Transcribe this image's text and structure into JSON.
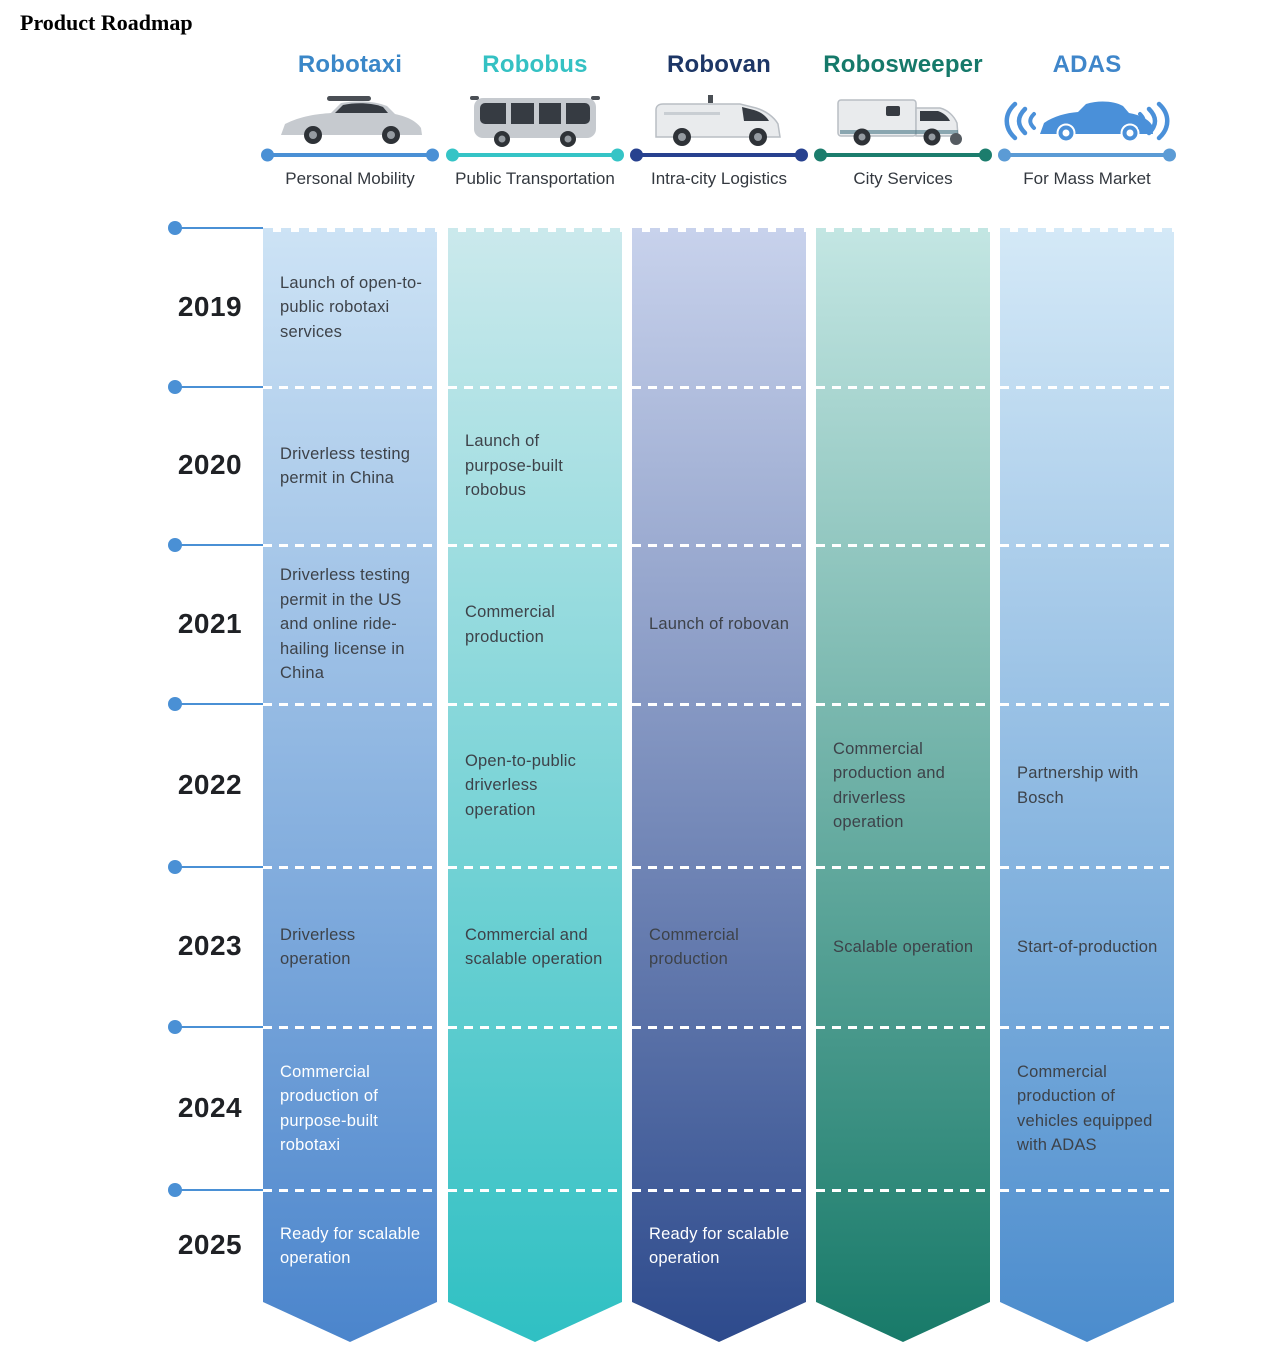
{
  "page_title": "Product Roadmap",
  "years": [
    "2019",
    "2020",
    "2021",
    "2022",
    "2023",
    "2024",
    "2025"
  ],
  "axis": {
    "dot_color": "#4a90d5"
  },
  "text_colors": {
    "dark": "#3d4249",
    "light": "#ffffff"
  },
  "columns": [
    {
      "name": "Robotaxi",
      "category": "Personal Mobility",
      "icon": "robotaxi-suv-icon",
      "colors": {
        "title": "#3a87c8",
        "line": "#4a90d5",
        "gradient_top": "#cde3f5",
        "gradient_bottom": "#4b85cc"
      },
      "milestones": {
        "2019": {
          "text": "Launch of open-to-public robotaxi services"
        },
        "2020": {
          "text": "Driverless testing permit in China"
        },
        "2021": {
          "text": "Driverless testing permit in the US and online ride-hailing license in China"
        },
        "2023": {
          "text": "Driverless operation"
        },
        "2024": {
          "text": "Commercial production of purpose-built robotaxi",
          "light": true
        },
        "2025": {
          "text": "Ready for scalable operation",
          "light": true
        }
      }
    },
    {
      "name": "Robobus",
      "category": "Public Transportation",
      "icon": "robobus-shuttle-icon",
      "colors": {
        "title": "#34c1c3",
        "line": "#35c4c6",
        "gradient_top": "#cbe9ec",
        "gradient_bottom": "#2fc0c3"
      },
      "milestones": {
        "2020": {
          "text": "Launch of purpose-built robobus"
        },
        "2021": {
          "text": "Commercial production"
        },
        "2022": {
          "text": "Open-to-public driverless operation"
        },
        "2023": {
          "text": "Commercial and scalable operation"
        }
      }
    },
    {
      "name": "Robovan",
      "category": "Intra-city Logistics",
      "icon": "robovan-van-icon",
      "colors": {
        "title": "#1d3666",
        "line": "#27418f",
        "gradient_top": "#c8d2ec",
        "gradient_bottom": "#2d4a8c"
      },
      "milestones": {
        "2021": {
          "text": "Launch of robovan"
        },
        "2023": {
          "text": "Commercial production"
        },
        "2025": {
          "text": "Ready for scalable operation",
          "light": true
        }
      }
    },
    {
      "name": "Robosweeper",
      "category": "City Services",
      "icon": "robosweeper-truck-icon",
      "colors": {
        "title": "#15796a",
        "line": "#1c7d6d",
        "gradient_top": "#c3e6e3",
        "gradient_bottom": "#187a69"
      },
      "milestones": {
        "2022": {
          "text": "Commercial production and driverless operation"
        },
        "2023": {
          "text": "Scalable operation"
        }
      }
    },
    {
      "name": "ADAS",
      "category": "For Mass Market",
      "icon": "adas-car-waves-icon",
      "colors": {
        "title": "#3f86ca",
        "line": "#5b9bd5",
        "gradient_top": "#d4e9f7",
        "gradient_bottom": "#4b8ccd"
      },
      "milestones": {
        "2022": {
          "text": "Partnership with Bosch"
        },
        "2023": {
          "text": "Start-of-production"
        },
        "2024": {
          "text": "Commercial production of vehicles equipped with ADAS"
        }
      }
    }
  ]
}
